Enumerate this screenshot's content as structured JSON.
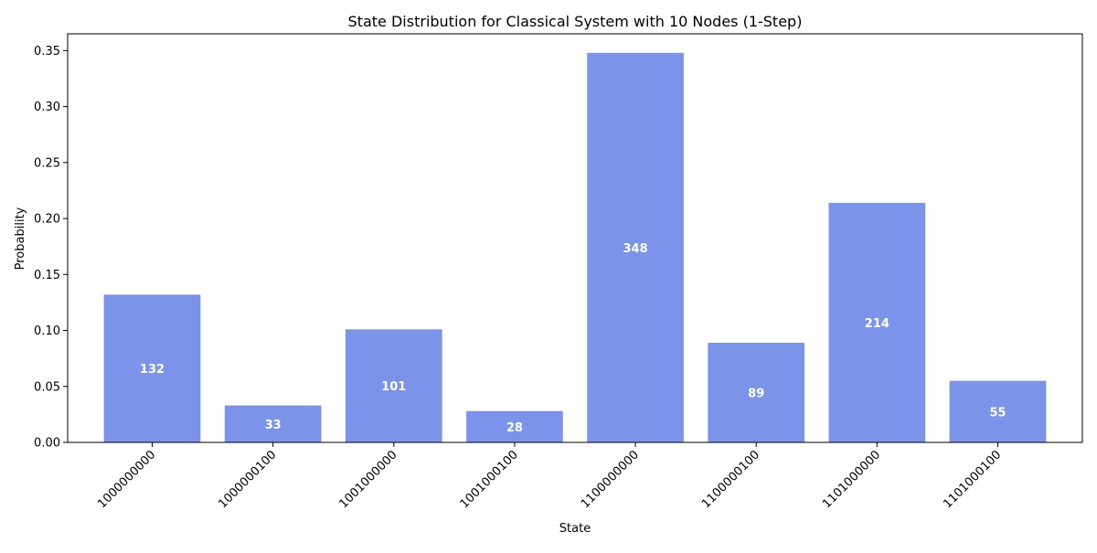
{
  "chart_data": {
    "type": "bar",
    "title": "State Distribution for Classical System with 10 Nodes (1-Step)",
    "xlabel": "State",
    "ylabel": "Probability",
    "categories": [
      "1000000000",
      "1000000100",
      "1001000000",
      "1001000100",
      "1100000000",
      "1100000100",
      "1101000000",
      "1101000100"
    ],
    "values": [
      0.132,
      0.033,
      0.101,
      0.028,
      0.348,
      0.089,
      0.214,
      0.055
    ],
    "bar_labels": [
      "132",
      "33",
      "101",
      "28",
      "348",
      "89",
      "214",
      "55"
    ],
    "ylim": [
      0,
      0.365
    ],
    "yticks": [
      0.0,
      0.05,
      0.1,
      0.15,
      0.2,
      0.25,
      0.3,
      0.35
    ],
    "ytick_labels": [
      "0.00",
      "0.05",
      "0.10",
      "0.15",
      "0.20",
      "0.25",
      "0.30",
      "0.35"
    ],
    "bar_color": "#7b93e9",
    "grid": false,
    "xtick_rotation": 45
  }
}
